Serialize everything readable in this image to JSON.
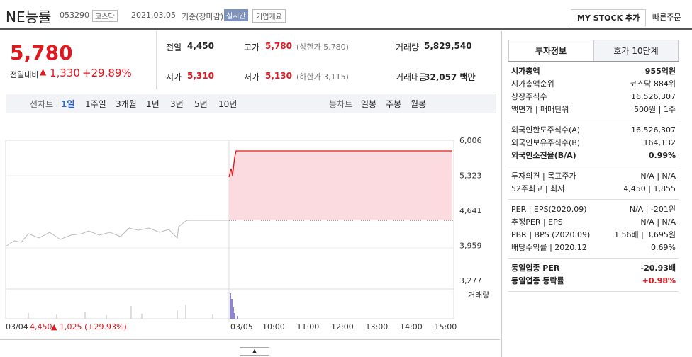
{
  "header": {
    "name": "NE능률",
    "code": "053290",
    "market": "코스닥",
    "date": "2021.03.05",
    "basis": "기준(장마감)",
    "realtime": "실시간",
    "company": "기업개요",
    "mystock": "MY STOCK 추가",
    "quick": "빠른주문"
  },
  "price": {
    "current": "5,780",
    "change_label": "전일대비",
    "change": "1,330",
    "rate": "+29.89%"
  },
  "stats": [
    [
      "전일",
      "4,450",
      ""
    ],
    [
      "고가",
      "5,780",
      "(상한가 5,780)"
    ],
    [
      "거래량",
      "5,829,540",
      ""
    ],
    [
      "시가",
      "5,310",
      ""
    ],
    [
      "저가",
      "5,130",
      "(하한가 3,115)"
    ],
    [
      "거래대금",
      "32,057 백만",
      ""
    ]
  ],
  "periods": {
    "line_label": "선차트",
    "line": [
      "1일",
      "1주일",
      "3개월",
      "1년",
      "3년",
      "5년",
      "10년"
    ],
    "candle_label": "봉차트",
    "candle": [
      "일봉",
      "주봉",
      "월봉"
    ]
  },
  "chart": {
    "yticks": [
      "6,006",
      "5,323",
      "4,641",
      "3,959",
      "3,277"
    ],
    "volume_label": "거래량",
    "xlabels": [
      "03/05",
      "10:00",
      "11:00",
      "12:00",
      "13:00",
      "14:00",
      "15:00"
    ],
    "prev_date": "03/04",
    "prev_price": "4,450",
    "prev_change": "1,025 (+29.93%)"
  },
  "info": {
    "tabs": [
      "투자정보",
      "호가 10단계"
    ],
    "groups": [
      [
        [
          "시가총액",
          "955억원"
        ],
        [
          "시가총액순위",
          "코스닥 884위"
        ],
        [
          "상장주식수",
          "16,526,307"
        ],
        [
          "액면가 | 매매단위",
          "500원 | 1주"
        ]
      ],
      [
        [
          "외국인한도주식수(A)",
          "16,526,307"
        ],
        [
          "외국인보유주식수(B)",
          "164,132"
        ],
        [
          "외국인소진율(B/A)",
          "0.99%"
        ]
      ],
      [
        [
          "투자의견 | 목표주가",
          "N/A | N/A"
        ],
        [
          "52주최고 | 최저",
          "4,450 | 1,855"
        ]
      ],
      [
        [
          "PER | EPS(2020.09)",
          "N/A | -201원"
        ],
        [
          "추정PER | EPS",
          "N/A | N/A"
        ],
        [
          "PBR | BPS (2020.09)",
          "1.56배 | 3,695원"
        ],
        [
          "배당수익률 | 2020.12",
          "0.69%"
        ]
      ],
      [
        [
          "동일업종 PER",
          "-20.93배"
        ],
        [
          "동일업종 등락률",
          "+0.98%"
        ]
      ]
    ]
  }
}
